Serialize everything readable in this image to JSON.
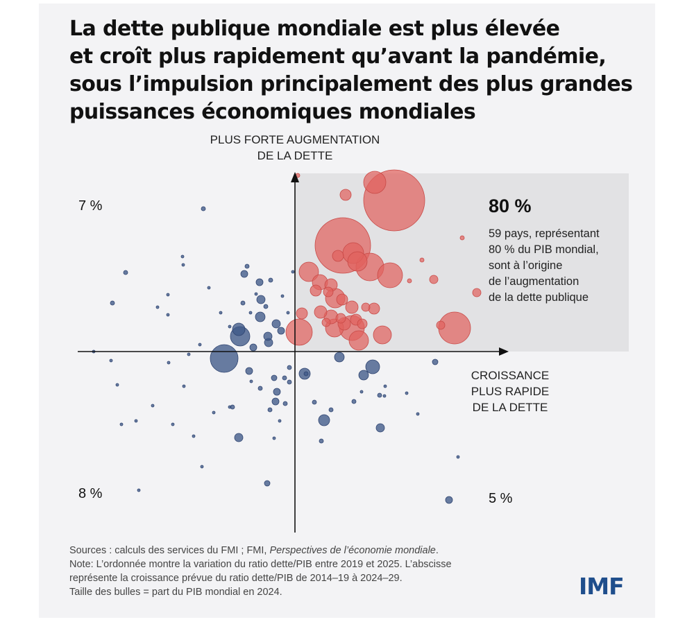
{
  "title_lines": [
    "La dette publique mondiale est plus élevée",
    "et croît plus rapidement qu’avant la pandémie,",
    "sous l’impulsion principalement des plus grandes",
    "puissances économiques mondiales"
  ],
  "colors": {
    "increase": "#e0625e",
    "decrease": "#3f5988",
    "highlight_box": "#e2e2e4",
    "axis": "#111111",
    "logo": "#1f4e8c"
  },
  "chart_data": {
    "type": "scatter",
    "title": "",
    "xlabel_lines": [
      "CROISSANCE",
      "PLUS RAPIDE",
      "DE LA DETTE"
    ],
    "ylabel_lines": [
      "PLUS FORTE AUGMENTATION",
      "DE LA DETTE"
    ],
    "quadrant_labels": {
      "top_left": "7 %",
      "bottom_left": "8 %",
      "bottom_right": "5 %"
    },
    "highlight": {
      "quadrant": "top-right",
      "value": "80 %",
      "text_lines": [
        "59 pays, représentant",
        "80 % du PIB mondial,",
        "sont à l’origine",
        "de l’augmentation",
        "de la dette publique"
      ]
    },
    "series": [
      {
        "color_key": "increase",
        "points": [
          [
            115,
            244,
            16
          ],
          [
            73,
            226,
            8
          ],
          [
            143,
            218,
            44
          ],
          [
            4,
            254,
            3
          ],
          [
            69,
            153,
            40
          ],
          [
            84,
            142,
            15
          ],
          [
            62,
            138,
            8
          ],
          [
            90,
            130,
            14
          ],
          [
            108,
            122,
            20
          ],
          [
            137,
            110,
            18
          ],
          [
            20,
            115,
            14
          ],
          [
            36,
            100,
            11
          ],
          [
            52,
            96,
            9
          ],
          [
            30,
            88,
            8
          ],
          [
            48,
            86,
            7
          ],
          [
            58,
            77,
            14
          ],
          [
            68,
            75,
            8
          ],
          [
            82,
            64,
            9
          ],
          [
            102,
            64,
            6
          ],
          [
            114,
            62,
            8
          ],
          [
            10,
            55,
            8
          ],
          [
            37,
            57,
            9
          ],
          [
            52,
            50,
            10
          ],
          [
            45,
            42,
            6
          ],
          [
            71,
            40,
            9
          ],
          [
            57,
            34,
            13
          ],
          [
            82,
            34,
            18
          ],
          [
            88,
            46,
            8
          ],
          [
            66,
            48,
            7
          ],
          [
            97,
            40,
            7
          ],
          [
            6,
            28,
            19
          ],
          [
            92,
            16,
            14
          ],
          [
            126,
            24,
            13
          ],
          [
            200,
            104,
            6
          ],
          [
            230,
            34,
            23
          ],
          [
            262,
            85,
            6
          ],
          [
            210,
            38,
            6
          ],
          [
            241,
            164,
            3
          ],
          [
            165,
            102,
            3
          ],
          [
            183,
            132,
            3
          ]
        ]
      },
      {
        "color_key": "decrease",
        "points": [
          [
            -79,
            22,
            14
          ],
          [
            -81,
            32,
            9
          ],
          [
            -102,
            -10,
            20
          ],
          [
            -137,
            10,
            2
          ],
          [
            -50,
            50,
            7
          ],
          [
            -27,
            40,
            6
          ],
          [
            -20,
            30,
            5
          ],
          [
            -38,
            13,
            6
          ],
          [
            -60,
            6,
            5
          ],
          [
            -66,
            -28,
            5
          ],
          [
            -49,
            75,
            6
          ],
          [
            -73,
            112,
            5
          ],
          [
            -69,
            123,
            3
          ],
          [
            -51,
            100,
            5
          ],
          [
            -132,
            206,
            3
          ],
          [
            -162,
            137,
            2
          ],
          [
            -183,
            82,
            2
          ],
          [
            -198,
            64,
            2
          ],
          [
            -244,
            114,
            3
          ],
          [
            -263,
            70,
            3
          ],
          [
            -183,
            53,
            2
          ],
          [
            -161,
            125,
            2
          ],
          [
            -124,
            92,
            2
          ],
          [
            -107,
            56,
            2
          ],
          [
            -94,
            36,
            2
          ],
          [
            -75,
            70,
            3
          ],
          [
            -64,
            56,
            2
          ],
          [
            -56,
            83,
            2
          ],
          [
            -42,
            65,
            3
          ],
          [
            -35,
            103,
            3
          ],
          [
            -18,
            80,
            2
          ],
          [
            -10,
            56,
            2
          ],
          [
            -3,
            115,
            2
          ],
          [
            -50,
            -53,
            3
          ],
          [
            -63,
            -43,
            2
          ],
          [
            -90,
            -80,
            3
          ],
          [
            -117,
            -88,
            2
          ],
          [
            -146,
            -122,
            2
          ],
          [
            -176,
            -105,
            2
          ],
          [
            -205,
            -78,
            2
          ],
          [
            -229,
            -100,
            2
          ],
          [
            -256,
            -48,
            2
          ],
          [
            -265,
            -13,
            2
          ],
          [
            -290,
            0,
            2
          ],
          [
            -153,
            -4,
            2
          ],
          [
            -182,
            -16,
            2
          ],
          [
            -39,
            22,
            6
          ],
          [
            -30,
            -38,
            4
          ],
          [
            -8,
            -44,
            3
          ],
          [
            -26,
            -58,
            5
          ],
          [
            -15,
            -38,
            3
          ],
          [
            14,
            -32,
            8
          ],
          [
            -28,
            -72,
            5
          ],
          [
            -36,
            -84,
            3
          ],
          [
            -8,
            -23,
            3
          ],
          [
            -14,
            -75,
            3
          ],
          [
            -22,
            -100,
            2
          ],
          [
            -30,
            -125,
            2
          ],
          [
            -40,
            -190,
            4
          ],
          [
            -81,
            -124,
            6
          ],
          [
            -94,
            -80,
            2
          ],
          [
            -134,
            -166,
            2
          ],
          [
            -225,
            -200,
            2
          ],
          [
            -160,
            -50,
            2
          ],
          [
            -250,
            -105,
            2
          ],
          [
            16,
            -32,
            3
          ],
          [
            42,
            -99,
            8
          ],
          [
            38,
            -129,
            3
          ],
          [
            28,
            -73,
            3
          ],
          [
            52,
            -84,
            3
          ],
          [
            64,
            -8,
            7
          ],
          [
            99,
            -34,
            7
          ],
          [
            112,
            -22,
            10
          ],
          [
            85,
            -72,
            3
          ],
          [
            122,
            -63,
            3
          ],
          [
            123,
            -110,
            6
          ],
          [
            96,
            -58,
            2
          ],
          [
            129,
            -64,
            2
          ],
          [
            202,
            -15,
            4
          ],
          [
            222,
            -214,
            5
          ],
          [
            235,
            -152,
            2
          ],
          [
            177,
            -90,
            2
          ],
          [
            130,
            -50,
            2
          ],
          [
            161,
            -60,
            2
          ]
        ]
      }
    ]
  },
  "sources": {
    "line1_prefix": "Sources : calculs des services du FMI ; FMI, ",
    "line1_italic": "Perspectives de l’économie mondiale",
    "line1_suffix": ".",
    "line2": "Note: L’ordonnée montre la variation du ratio dette/PIB entre 2019 et 2025. L’abscisse",
    "line3": "représente la croissance prévue du ratio dette/PIB de 2014–19 à 2024–29.",
    "line4": "Taille des bulles = part du PIB mondial en 2024."
  },
  "logo": "IMF"
}
